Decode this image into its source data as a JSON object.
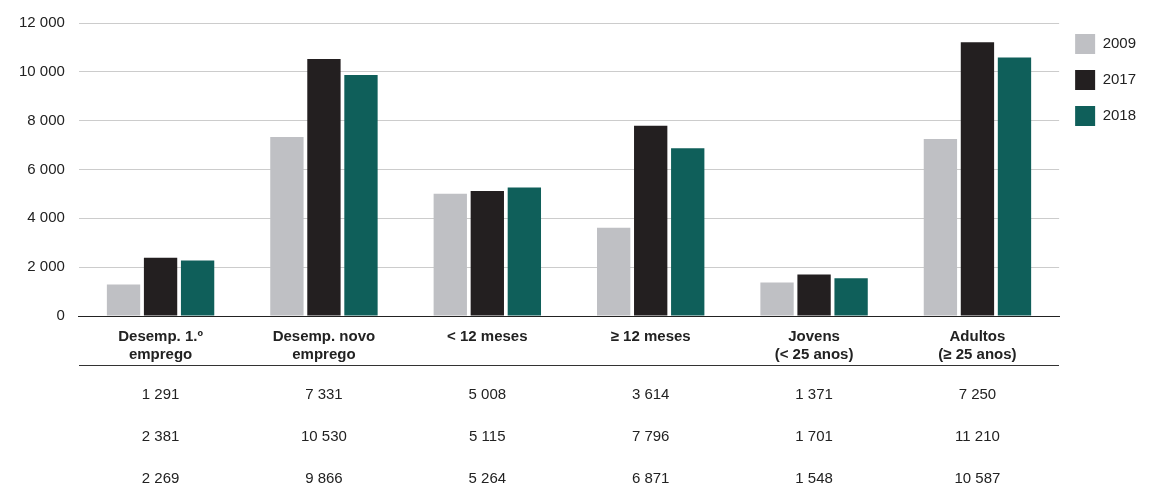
{
  "chart_data": {
    "type": "bar",
    "categories": [
      "Desemp. 1.º\nemprego",
      "Desemp. novo\nemprego",
      "< 12 meses",
      "≥ 12 meses",
      "Jovens\n(< 25 anos)",
      "Adultos\n(≥ 25 anos)"
    ],
    "series": [
      {
        "name": "2009",
        "color": "#bfc0c4",
        "values": [
          1291,
          7331,
          5008,
          3614,
          1371,
          7250
        ],
        "value_labels": [
          "1 291",
          "7 331",
          "5 008",
          "3 614",
          "1 371",
          "7 250"
        ]
      },
      {
        "name": "2017",
        "color": "#231f20",
        "values": [
          2381,
          10530,
          5115,
          7796,
          1701,
          11210
        ],
        "value_labels": [
          "2 381",
          "10 530",
          "5 115",
          "7 796",
          "1 701",
          "11 210"
        ]
      },
      {
        "name": "2018",
        "color": "#0f5f5a",
        "values": [
          2269,
          9866,
          5264,
          6871,
          1548,
          10587
        ],
        "value_labels": [
          "2 269",
          "9 866",
          "5 264",
          "6 871",
          "1 548",
          "10 587"
        ]
      }
    ],
    "ylim": [
      0,
      12000
    ],
    "yticks": [
      0,
      {
        "value": 2000,
        "label": "2 000"
      },
      {
        "value": 4000,
        "label": "4 000"
      },
      {
        "value": 6000,
        "label": "6 000"
      },
      {
        "value": 8000,
        "label": "8 000"
      },
      {
        "value": 10000,
        "label": "10 000"
      },
      {
        "value": 12000,
        "label": "12 000"
      }
    ],
    "grid": "y",
    "legend": "top right"
  }
}
